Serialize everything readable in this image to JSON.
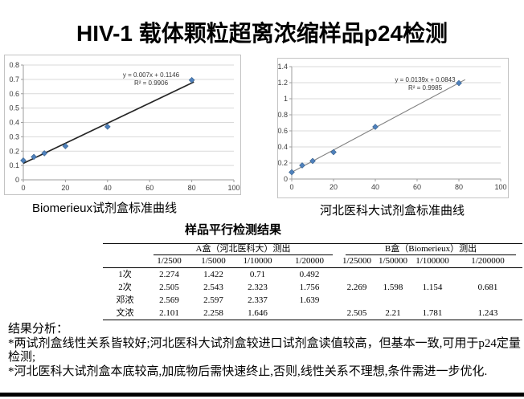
{
  "title": "HIV-1 载体颗粒超离浓缩样品p24检测",
  "chart_data": [
    {
      "type": "scatter",
      "name": "biomerieux-standard-curve",
      "caption": "Biomerieux试剂盒标准曲线",
      "x": [
        0,
        5,
        10,
        20,
        40,
        80
      ],
      "y": [
        0.135,
        0.16,
        0.185,
        0.235,
        0.37,
        0.695
      ],
      "equation": "y = 0.007x + 0.1146",
      "r_squared": "R² = 0.9906",
      "trendline": {
        "slope": 0.007,
        "intercept": 0.1146,
        "x_start": 0,
        "x_end": 81
      },
      "xlim": [
        0,
        100
      ],
      "ylim": [
        0,
        0.8
      ],
      "xticks": [
        0,
        20,
        40,
        60,
        80,
        100
      ],
      "yticks": [
        0,
        0.1,
        0.2,
        0.3,
        0.4,
        0.5,
        0.6,
        0.7,
        0.8
      ],
      "grid": true,
      "legend": "none",
      "marker_color": "#4f81bd",
      "trend_color": "#262626"
    },
    {
      "type": "scatter",
      "name": "hebei-standard-curve",
      "caption": "河北医科大试剂盒标准曲线",
      "x": [
        0,
        5,
        10,
        20,
        40,
        80
      ],
      "y": [
        0.085,
        0.17,
        0.225,
        0.335,
        0.65,
        1.195
      ],
      "equation": "y = 0.0139x + 0.0843",
      "r_squared": "R² = 0.9985",
      "trendline": {
        "slope": 0.0139,
        "intercept": 0.0843,
        "x_start": 0,
        "x_end": 83
      },
      "xlim": [
        0,
        100
      ],
      "ylim": [
        0,
        1.4
      ],
      "xticks": [
        0,
        20,
        40,
        60,
        80,
        100
      ],
      "yticks": [
        0,
        0.2,
        0.4,
        0.6,
        0.8,
        1,
        1.2,
        1.4
      ],
      "grid": true,
      "legend": "none",
      "marker_color": "#4f81bd",
      "trend_color": "#808080"
    }
  ],
  "table": {
    "title": "样品平行检测结果",
    "group_headers": [
      "A盒（河北医科大）测出",
      "B盒（Biomerieux）测出"
    ],
    "col_headers": [
      "1/2500",
      "1/5000",
      "1/10000",
      "1/20000",
      "1/25000",
      "1/50000",
      "1/100000",
      "1/200000"
    ],
    "rows": [
      {
        "label": "1次",
        "values": [
          "2.274",
          "1.422",
          "0.71",
          "0.492",
          "",
          "",
          "",
          ""
        ]
      },
      {
        "label": "2次",
        "values": [
          "2.505",
          "2.543",
          "2.323",
          "1.756",
          "2.269",
          "1.598",
          "1.154",
          "0.681"
        ]
      },
      {
        "label": "邓浓",
        "values": [
          "2.569",
          "2.597",
          "2.337",
          "1.639",
          "",
          "",
          "",
          ""
        ]
      },
      {
        "label": "文浓",
        "values": [
          "2.101",
          "2.258",
          "1.646",
          "",
          "2.505",
          "2.21",
          "1.781",
          "1.243"
        ]
      }
    ]
  },
  "analysis": {
    "heading": "结果分析：",
    "bullets": [
      "*两试剂盒线性关系皆较好;河北医科大试剂盒较进口试剂盒读值较高，但基本一致,可用于p24定量检测;",
      "*河北医科大试剂盒本底较高,加底物后需快速终止,否则,线性关系不理想,条件需进一步优化."
    ]
  },
  "colors": {
    "marker": "#4f81bd",
    "gridline": "#d9d9d9",
    "axis": "#9e9e9e",
    "chart_border": "#c3c3c3"
  }
}
